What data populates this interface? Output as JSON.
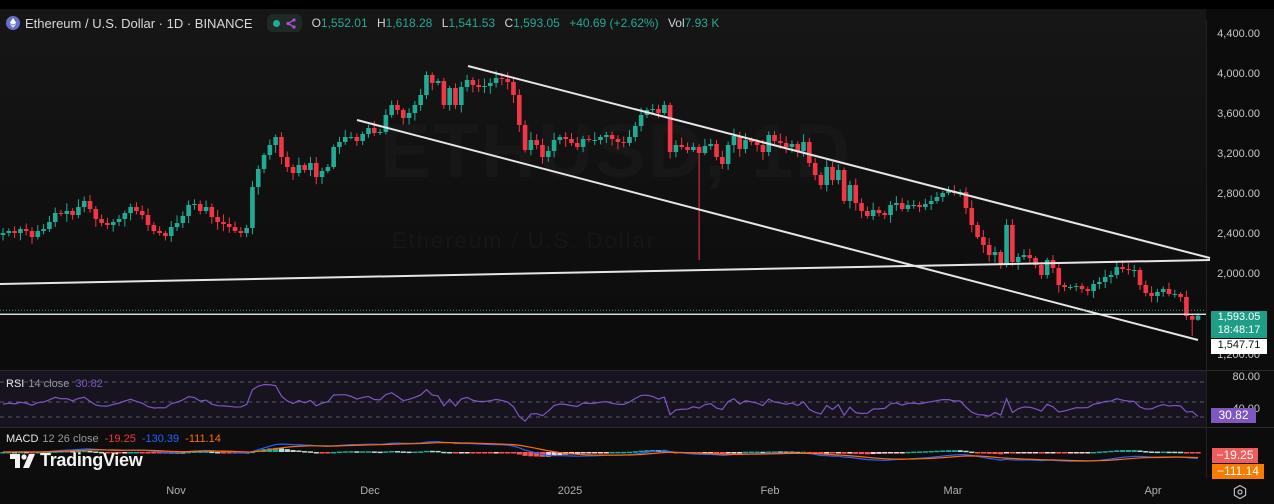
{
  "header": {
    "symbol_title": "Ethereum / U.S. Dollar · 1D · BINANCE",
    "ohlc": {
      "open_label": "O",
      "open": "1,552.01",
      "high_label": "H",
      "high": "1,618.28",
      "low_label": "L",
      "low": "1,541.53",
      "close_label": "C",
      "close": "1,593.05",
      "change": "+40.69 (+2.62%)",
      "vol_label": "Vol",
      "vol": "7.93 K"
    }
  },
  "watermark": {
    "symbol": "ETHUSD, 1D",
    "description": "Ethereum / U.S. Dollar"
  },
  "price_axis": {
    "labels": [
      "4,400.00",
      "4,000.00",
      "3,600.00",
      "3,200.00",
      "2,800.00",
      "2,400.00",
      "2,000.00",
      "1,200.00"
    ],
    "last_price": "1,593.05",
    "countdown": "18:48:17",
    "crosshair_price": "1,547.71"
  },
  "rsi": {
    "name": "RSI",
    "params": "14 close",
    "value": "30.82",
    "axis_labels": [
      "80.00",
      "40.00"
    ]
  },
  "macd": {
    "name": "MACD",
    "params": "12 26 close",
    "histogram": "-19.25",
    "macd": "-130.39",
    "signal": "-111.14",
    "tag_hist": "−19.25",
    "tag_signal": "−111.14"
  },
  "time_axis": {
    "labels": [
      "Nov",
      "Dec",
      "2025",
      "Feb",
      "Mar",
      "Apr"
    ]
  },
  "branding": {
    "logo_text": "TradingView"
  },
  "colors": {
    "up": "#22ab94",
    "down": "#f23645",
    "rsi": "#7e57c2",
    "macd": "#2962ff",
    "signal": "#ff6d00",
    "trendline": "#e6e6e6"
  },
  "chart_data": {
    "type": "candlestick",
    "title": "Ethereum / U.S. Dollar · 1D · BINANCE",
    "x_start": "Oct 5 2024",
    "x_end": "Apr 8 2025",
    "x_tick_labels": [
      "Nov",
      "Dec",
      "2025",
      "Feb",
      "Mar",
      "Apr"
    ],
    "ylim": [
      1200,
      4400
    ],
    "y_tick_labels": [
      4400,
      4000,
      3600,
      3200,
      2800,
      2400,
      2000,
      1200
    ],
    "closes": [
      2420,
      2440,
      2420,
      2460,
      2440,
      2380,
      2440,
      2460,
      2530,
      2620,
      2610,
      2640,
      2600,
      2680,
      2740,
      2660,
      2560,
      2520,
      2500,
      2530,
      2560,
      2620,
      2680,
      2640,
      2600,
      2500,
      2440,
      2420,
      2390,
      2480,
      2520,
      2590,
      2700,
      2710,
      2640,
      2680,
      2580,
      2530,
      2510,
      2480,
      2440,
      2420,
      2470,
      2880,
      3060,
      3200,
      3300,
      3380,
      3180,
      3080,
      3020,
      3100,
      3050,
      3120,
      2980,
      3040,
      3080,
      3280,
      3330,
      3380,
      3380,
      3340,
      3410,
      3470,
      3420,
      3430,
      3600,
      3700,
      3650,
      3570,
      3620,
      3700,
      3800,
      4000,
      3920,
      3940,
      3700,
      3870,
      3700,
      3880,
      3950,
      3900,
      3880,
      3890,
      3920,
      3970,
      3960,
      3930,
      3800,
      3500,
      3250,
      3350,
      3300,
      3180,
      3240,
      3350,
      3380,
      3360,
      3320,
      3280,
      3360,
      3350,
      3350,
      3380,
      3400,
      3360,
      3330,
      3320,
      3380,
      3490,
      3600,
      3650,
      3660,
      3620,
      3700,
      3230,
      3300,
      3280,
      3250,
      3280,
      3220,
      3290,
      3310,
      3180,
      3110,
      3300,
      3390,
      3260,
      3350,
      3330,
      3300,
      3230,
      3400,
      3340,
      3320,
      3280,
      3310,
      3240,
      3330,
      3120,
      3000,
      2900,
      3080,
      2950,
      3050,
      2740,
      2900,
      2720,
      2640,
      2590,
      2650,
      2620,
      2600,
      2700,
      2720,
      2660,
      2700,
      2700,
      2680,
      2710,
      2740,
      2780,
      2820,
      2840,
      2820,
      2830,
      2670,
      2500,
      2380,
      2300,
      2200,
      2230,
      2100,
      2500,
      2130,
      2180,
      2200,
      2170,
      2100,
      2000,
      2150,
      2070,
      1900,
      1880,
      1880,
      1890,
      1860,
      1840,
      1910,
      1930,
      1980,
      2000,
      2080,
      2060,
      2050,
      2050,
      1900,
      1820,
      1790,
      1830,
      1860,
      1810,
      1810,
      1780,
      1590,
      1552,
      1593
    ],
    "overlays": {
      "channel_upper": [
        [
          468,
          66
        ],
        [
          1210,
          258
        ]
      ],
      "channel_lower": [
        [
          357,
          120
        ],
        [
          1198,
          340
        ]
      ],
      "support_line": [
        [
          0,
          284
        ],
        [
          1210,
          260
        ]
      ],
      "horizontal_line_y_price": 1547.71
    }
  }
}
